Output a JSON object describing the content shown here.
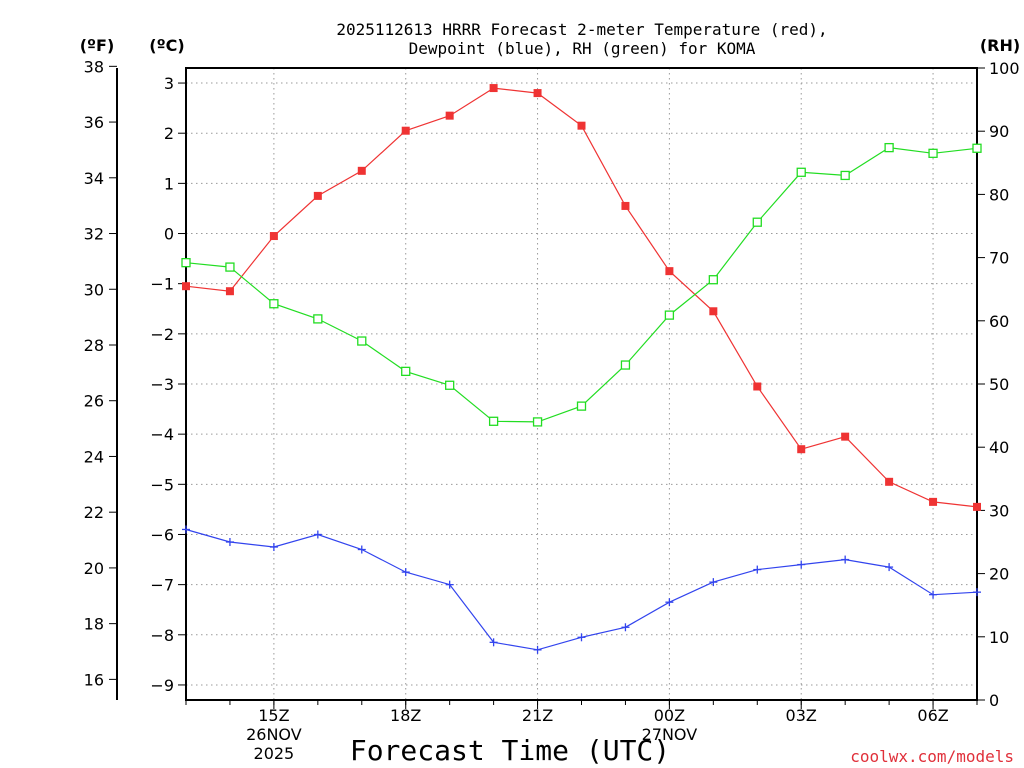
{
  "chart_data": {
    "type": "line",
    "title_line1": "2025112613 HRRR Forecast 2-meter Temperature (red),",
    "title_line2": "Dewpoint (blue), RH (green) for KOMA",
    "xlabel": "Forecast Time (UTC)",
    "credit": "coolwx.com/models",
    "unit_f": "(ºF)",
    "unit_c": "(ºC)",
    "unit_rh": "(RH)",
    "x_hours": [
      13,
      14,
      15,
      16,
      17,
      18,
      19,
      20,
      21,
      22,
      23,
      24,
      25,
      26,
      27,
      28,
      29,
      30,
      31
    ],
    "xlim": [
      13,
      31
    ],
    "x_ticks": [
      {
        "hour": 15,
        "label": "15Z",
        "label2": "26NOV",
        "label3": "2025"
      },
      {
        "hour": 18,
        "label": "18Z",
        "label2": "",
        "label3": ""
      },
      {
        "hour": 21,
        "label": "21Z",
        "label2": "",
        "label3": ""
      },
      {
        "hour": 24,
        "label": "00Z",
        "label2": "27NOV",
        "label3": ""
      },
      {
        "hour": 27,
        "label": "03Z",
        "label2": "",
        "label3": ""
      },
      {
        "hour": 30,
        "label": "06Z",
        "label2": "",
        "label3": ""
      }
    ],
    "celsius_axis": {
      "ylim": [
        -9.3,
        3.3
      ],
      "ticks": [
        3,
        2,
        1,
        0,
        -1,
        -2,
        -3,
        -4,
        -5,
        -6,
        -7,
        -8,
        -9
      ],
      "tick_labels": [
        "3",
        "2",
        "1",
        "0",
        "−1",
        "−2",
        "−3",
        "−4",
        "−5",
        "−6",
        "−7",
        "−8",
        "−9"
      ]
    },
    "fahrenheit_axis": {
      "ticks": [
        38,
        36,
        34,
        32,
        30,
        28,
        26,
        24,
        22,
        20,
        18,
        16
      ],
      "tick_labels": [
        "38",
        "36",
        "34",
        "32",
        "30",
        "28",
        "26",
        "24",
        "22",
        "20",
        "18",
        "16"
      ]
    },
    "rh_axis": {
      "ylim": [
        0,
        100
      ],
      "ticks": [
        100,
        90,
        80,
        70,
        60,
        50,
        40,
        30,
        20,
        10,
        0
      ],
      "tick_labels": [
        "100",
        "90",
        "80",
        "70",
        "60",
        "50",
        "40",
        "30",
        "20",
        "10",
        "0"
      ]
    },
    "series": [
      {
        "name": "Temperature",
        "unit": "C",
        "color": "#ef3333",
        "marker": "filled-square",
        "values": [
          -1.05,
          -1.15,
          -0.05,
          0.75,
          1.25,
          2.05,
          2.35,
          2.9,
          2.8,
          2.15,
          0.55,
          -0.75,
          -1.55,
          -3.05,
          -4.3,
          -4.05,
          -4.95,
          -5.35,
          -5.45
        ]
      },
      {
        "name": "Dewpoint",
        "unit": "C",
        "color": "#3244ee",
        "marker": "plus",
        "values": [
          -5.9,
          -6.15,
          -6.25,
          -6.0,
          -6.3,
          -6.75,
          -7.0,
          -8.15,
          -8.3,
          -8.05,
          -7.85,
          -7.35,
          -6.95,
          -6.7,
          -6.6,
          -6.5,
          -6.65,
          -7.2,
          -7.15
        ]
      },
      {
        "name": "RH",
        "unit": "%",
        "color": "#22dd22",
        "marker": "open-square",
        "values": [
          69.2,
          68.5,
          62.7,
          60.3,
          56.8,
          52.0,
          49.8,
          44.1,
          44.0,
          46.5,
          53.0,
          60.9,
          66.5,
          75.6,
          83.5,
          83.0,
          87.4,
          86.5,
          87.3
        ]
      }
    ]
  }
}
